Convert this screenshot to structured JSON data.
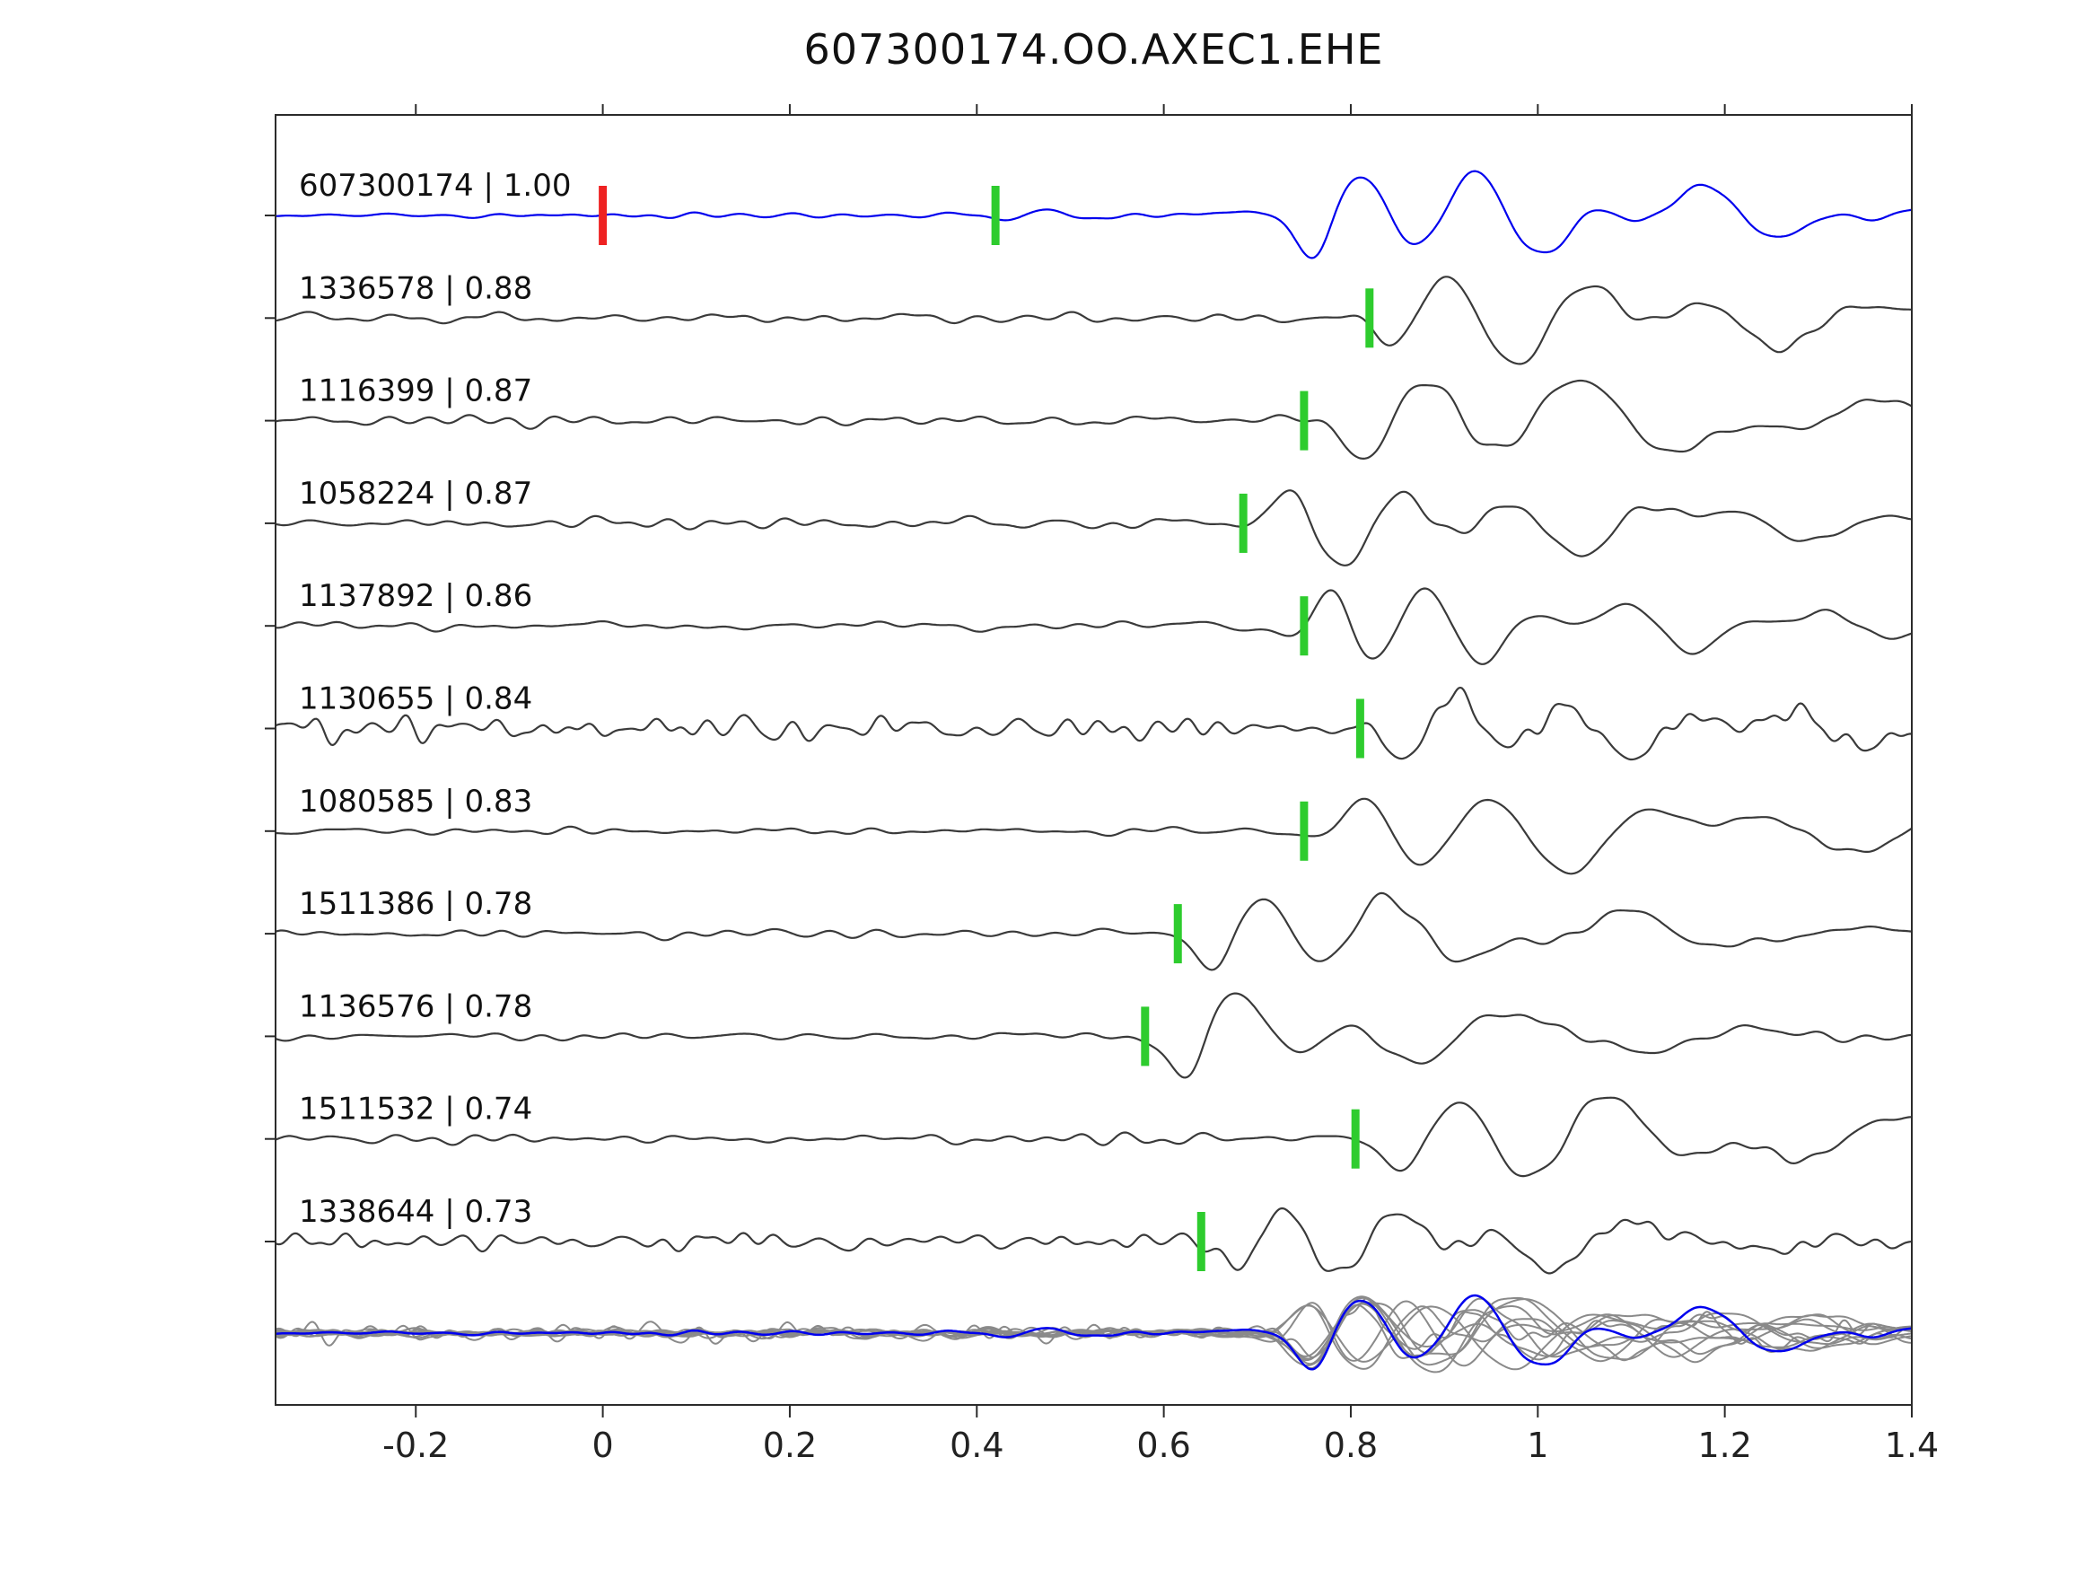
{
  "title": "607300174.OO.AXEC1.EHE",
  "colors": {
    "reference_trace": "#0000ee",
    "match_trace": "#3a3a3a",
    "overlay_trace": "#8a8a8a",
    "pick_marker": "#2ecc2e",
    "zero_marker": "#ee2222",
    "axis": "#2b2b2b",
    "label_text": "#111111",
    "tick_text": "#222222"
  },
  "chart_data": {
    "type": "line",
    "title": "607300174.OO.AXEC1.EHE",
    "xlabel": "",
    "ylabel": "",
    "xlim": [
      -0.35,
      1.4
    ],
    "grid": false,
    "legend": "none",
    "x_tick_values": [
      -0.2,
      0,
      0.2,
      0.4,
      0.6,
      0.8,
      1.0,
      1.2,
      1.4
    ],
    "x_tick_labels": [
      "-0.2",
      "0",
      "0.2",
      "0.4",
      "0.6",
      "0.8",
      "1",
      "1.2",
      "1.4"
    ],
    "reference_zero_marker_time": 0,
    "traces": [
      {
        "id": "607300174",
        "correlation": "1.00",
        "label": "607300174 | 1.00",
        "role": "reference",
        "pick_time": 0.42,
        "zero_marker_time": 0,
        "seed": 7,
        "noise_amp": 2.5,
        "arrival_time": 0.78,
        "arrival_amp": 56,
        "freq": 8,
        "tau": 0.3,
        "pre_bump": {
          "t": 0.45,
          "amp": 7
        }
      },
      {
        "id": "1336578",
        "correlation": "0.88",
        "label": "1336578 | 0.88",
        "role": "match",
        "pick_time": 0.82,
        "seed": 13,
        "noise_amp": 5,
        "arrival_time": 0.87,
        "arrival_amp": 52,
        "freq": 7,
        "tau": 0.3
      },
      {
        "id": "1116399",
        "correlation": "0.87",
        "label": "1116399 | 0.87",
        "role": "match",
        "pick_time": 0.75,
        "seed": 21,
        "noise_amp": 5,
        "arrival_time": 0.84,
        "arrival_amp": 60,
        "freq": 6,
        "tau": 0.28
      },
      {
        "id": "1058224",
        "correlation": "0.87",
        "label": "1058224 | 0.87",
        "role": "match",
        "pick_time": 0.685,
        "seed": 34,
        "noise_amp": 6,
        "arrival_time": 0.76,
        "arrival_amp": 48,
        "freq": 8,
        "tau": 0.25
      },
      {
        "id": "1137892",
        "correlation": "0.86",
        "label": "1137892 | 0.86",
        "role": "match",
        "pick_time": 0.75,
        "seed": 41,
        "noise_amp": 5,
        "arrival_time": 0.8,
        "arrival_amp": 50,
        "freq": 9,
        "tau": 0.22
      },
      {
        "id": "1130655",
        "correlation": "0.84",
        "label": "1130655 | 0.84",
        "role": "match",
        "pick_time": 0.81,
        "seed": 55,
        "noise_amp": 12,
        "arrival_time": 0.88,
        "arrival_amp": 42,
        "freq": 8,
        "tau": 0.25,
        "noise_fmax": 45
      },
      {
        "id": "1080585",
        "correlation": "0.83",
        "label": "1080585 | 0.83",
        "role": "match",
        "pick_time": 0.75,
        "seed": 62,
        "noise_amp": 4,
        "arrival_time": 0.84,
        "arrival_amp": 52,
        "freq": 6.5,
        "tau": 0.28
      },
      {
        "id": "1511386",
        "correlation": "0.78",
        "label": "1511386 | 0.78",
        "role": "match",
        "pick_time": 0.615,
        "seed": 70,
        "noise_amp": 4,
        "arrival_time": 0.675,
        "arrival_amp": 54,
        "freq": 7.5,
        "tau": 0.22
      },
      {
        "id": "1136576",
        "correlation": "0.78",
        "label": "1136576 | 0.78",
        "role": "match",
        "pick_time": 0.58,
        "seed": 83,
        "noise_amp": 4,
        "arrival_time": 0.645,
        "arrival_amp": 54,
        "freq": 7.5,
        "tau": 0.15
      },
      {
        "id": "1511532",
        "correlation": "0.74",
        "label": "1511532 | 0.74",
        "role": "match",
        "pick_time": 0.805,
        "seed": 91,
        "noise_amp": 5,
        "arrival_time": 0.88,
        "arrival_amp": 56,
        "freq": 6.5,
        "tau": 0.28
      },
      {
        "id": "1338644",
        "correlation": "0.73",
        "label": "1338644 | 0.73",
        "role": "match",
        "pick_time": 0.64,
        "seed": 104,
        "noise_amp": 9,
        "arrival_time": 0.7,
        "arrival_amp": 44,
        "freq": 8.5,
        "tau": 0.25,
        "noise_fmax": 38
      }
    ],
    "overlay_row": {
      "description": "all matched traces overlaid, time-aligned to reference arrival, with reference trace on top",
      "align_time": 0.78,
      "amp_scale": 0.85
    }
  }
}
